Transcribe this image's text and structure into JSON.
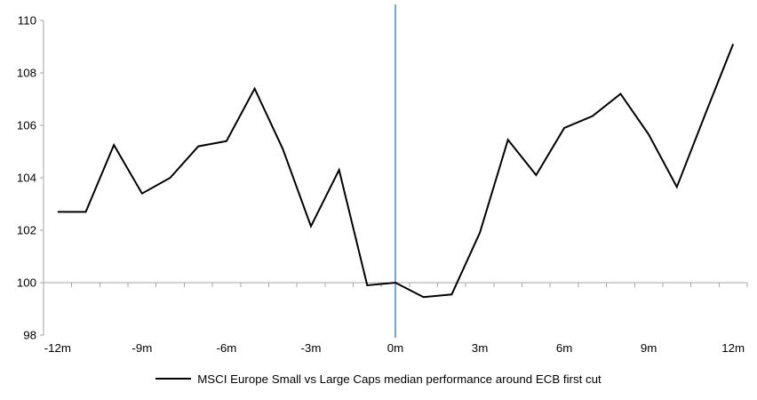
{
  "chart_data": {
    "type": "line",
    "title": "",
    "x": [
      -12,
      -11,
      -10,
      -9,
      -8,
      -7,
      -6,
      -5,
      -4,
      -3,
      -2,
      -1,
      0,
      1,
      2,
      3,
      4,
      5,
      6,
      7,
      8,
      9,
      10,
      11,
      12
    ],
    "series": [
      {
        "name": "MSCI Europe Small vs Large Caps median performance around ECB first cut",
        "color": "#000000",
        "values": [
          102.7,
          102.7,
          105.25,
          103.4,
          104.0,
          105.2,
          105.4,
          107.4,
          105.1,
          102.15,
          104.3,
          99.9,
          100.0,
          99.45,
          99.55,
          101.9,
          105.45,
          104.1,
          105.9,
          106.35,
          107.2,
          105.65,
          103.65,
          106.4,
          109.1
        ]
      }
    ],
    "x_tick_labels": [
      "-12m",
      "-9m",
      "-6m",
      "-3m",
      "0m",
      "3m",
      "6m",
      "9m",
      "12m"
    ],
    "x_tick_positions": [
      -12,
      -9,
      -6,
      -3,
      0,
      3,
      6,
      9,
      12
    ],
    "y_ticks": [
      98,
      100,
      102,
      104,
      106,
      108,
      110
    ],
    "ylim": [
      98,
      110
    ],
    "xlim": [
      -12.5,
      12.5
    ],
    "baseline_y": 100,
    "event_line": {
      "x": 0,
      "color": "#79A6CF"
    },
    "axis_color": "#A6A6A6",
    "text_color": "#000000",
    "grid": "off",
    "legend_position": "bottom-center"
  }
}
